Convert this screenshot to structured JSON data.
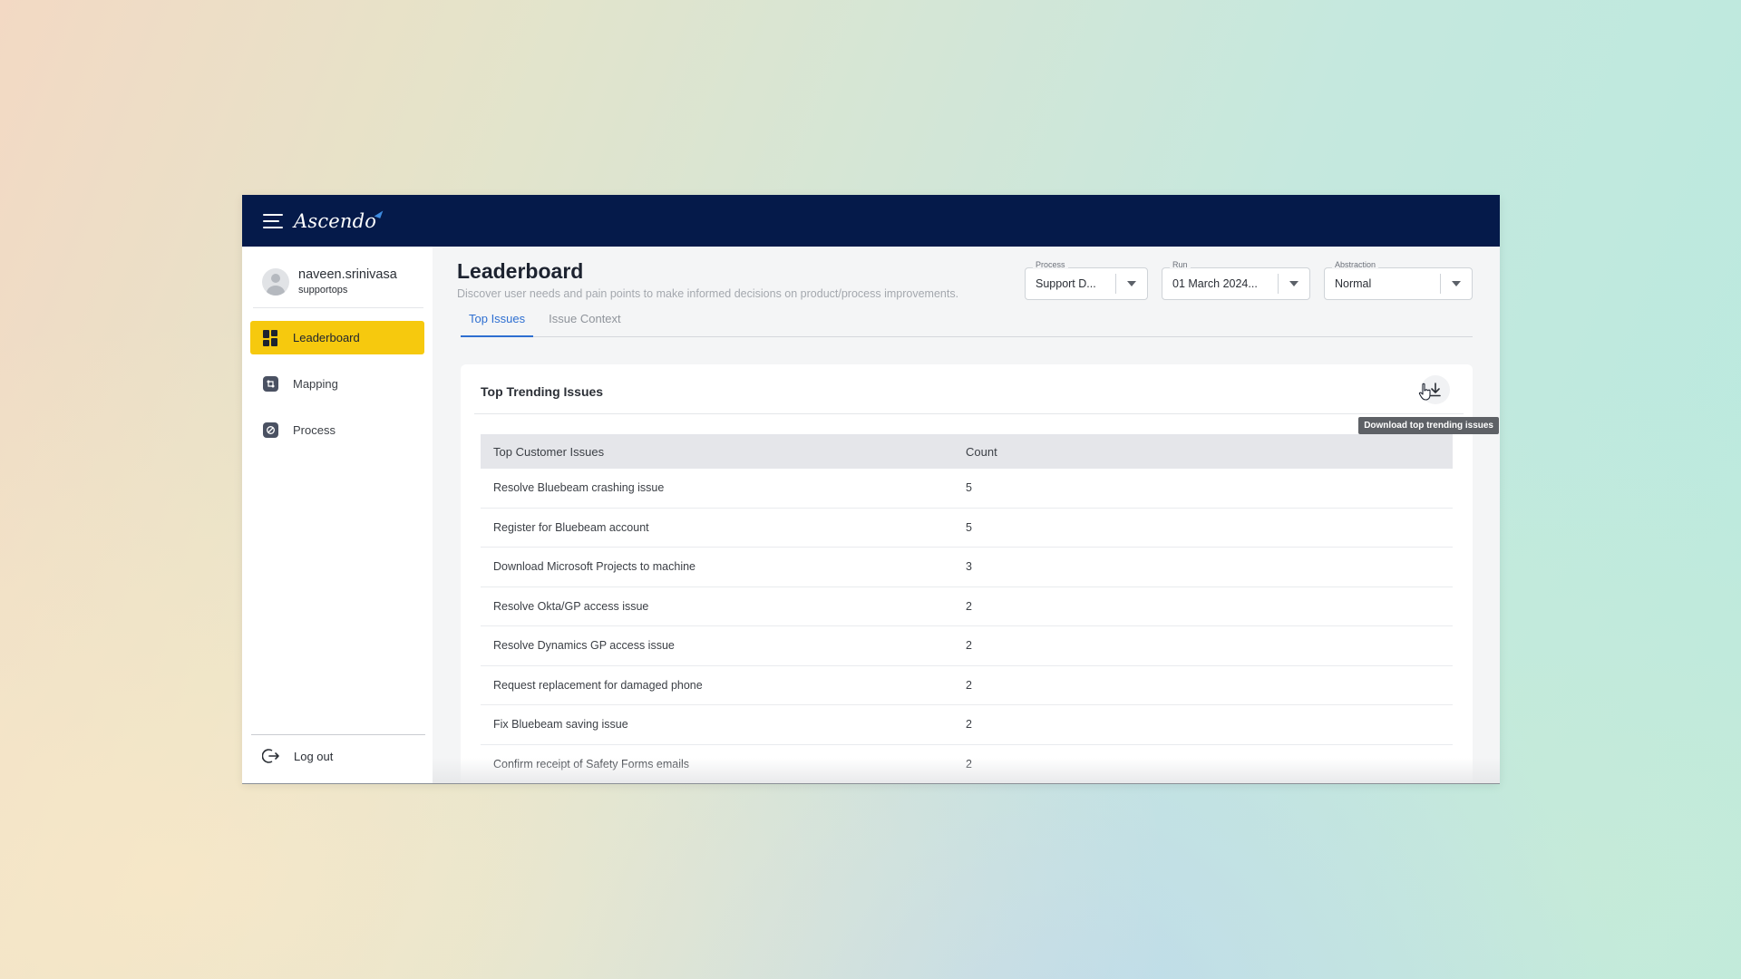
{
  "app": {
    "brand": "Ascendo"
  },
  "user": {
    "name": "naveen.srinivasa",
    "role": "supportops"
  },
  "sidebar": {
    "items": [
      {
        "label": "Leaderboard",
        "icon": "grid-icon",
        "active": true
      },
      {
        "label": "Mapping",
        "icon": "mapping-icon",
        "active": false
      },
      {
        "label": "Process",
        "icon": "process-icon",
        "active": false
      }
    ],
    "logout_label": "Log out"
  },
  "header": {
    "title": "Leaderboard",
    "subtitle": "Discover user needs and pain points to make informed decisions on product/process improvements."
  },
  "filters": {
    "process": {
      "label": "Process",
      "value": "Support D..."
    },
    "run": {
      "label": "Run",
      "value": "01 March 2024..."
    },
    "abstraction": {
      "label": "Abstraction",
      "value": "Normal"
    }
  },
  "tabs": [
    {
      "label": "Top Issues",
      "active": true
    },
    {
      "label": "Issue Context",
      "active": false
    }
  ],
  "card": {
    "title": "Top Trending Issues",
    "download_tooltip": "Download top trending issues"
  },
  "table": {
    "columns": [
      "Top Customer Issues",
      "Count"
    ],
    "rows": [
      {
        "issue": "Resolve Bluebeam crashing issue",
        "count": "5"
      },
      {
        "issue": "Register for Bluebeam account",
        "count": "5"
      },
      {
        "issue": "Download Microsoft Projects to machine",
        "count": "3"
      },
      {
        "issue": "Resolve Okta/GP access issue",
        "count": "2"
      },
      {
        "issue": "Resolve Dynamics GP access issue",
        "count": "2"
      },
      {
        "issue": "Request replacement for damaged phone",
        "count": "2"
      },
      {
        "issue": "Fix Bluebeam saving issue",
        "count": "2"
      },
      {
        "issue": "Confirm receipt of Safety Forms emails",
        "count": "2"
      }
    ]
  },
  "colors": {
    "topbar": "#051a4a",
    "active_nav": "#f6c90e",
    "active_tab": "#2e6fd1"
  }
}
